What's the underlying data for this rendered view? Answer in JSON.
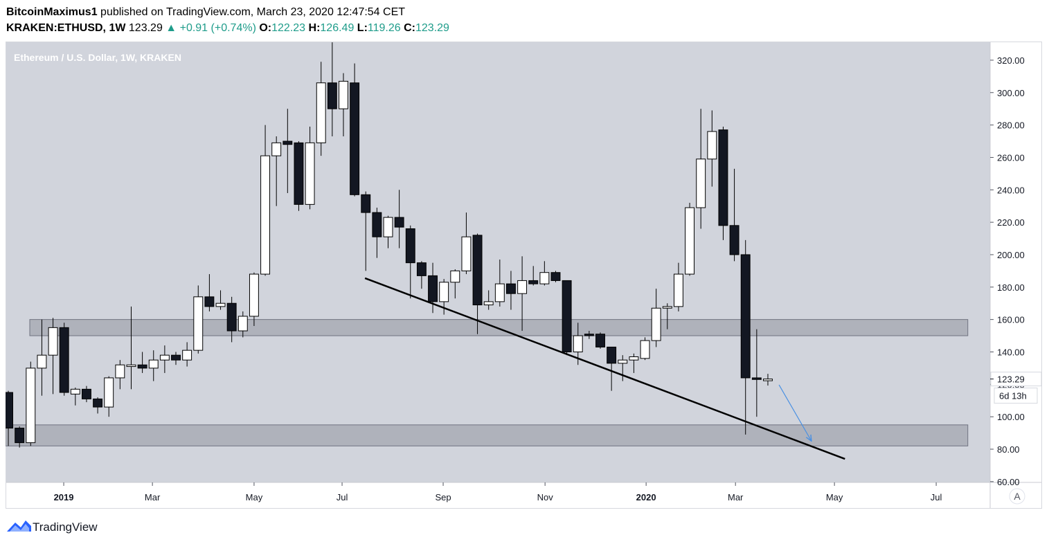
{
  "header": {
    "author": "BitcoinMaximus1",
    "published": "published on TradingView.com, March 23, 2020 12:47:54 CET",
    "symbol": "KRAKEN:ETHUSD, 1W",
    "arrow": "▲",
    "change": "+0.91 (+0.74%)",
    "ohlc_labels": [
      "O:",
      "H:",
      "L:",
      "C:"
    ]
  },
  "chart_data": {
    "type": "candlestick",
    "title": "Ethereum / U.S. Dollar, 1W, KRAKEN",
    "categories": [
      null,
      null,
      null,
      null,
      null,
      null,
      null,
      null,
      null,
      null,
      null,
      null,
      null,
      null,
      null,
      null,
      null,
      null,
      null,
      null,
      null,
      null,
      null,
      null,
      null,
      null,
      null,
      null,
      null,
      null,
      null,
      null,
      null,
      null,
      null,
      null,
      null,
      null,
      null,
      null,
      null,
      null,
      null,
      null,
      null,
      null,
      null,
      null,
      null,
      null,
      null,
      null,
      null,
      null,
      null,
      null,
      null,
      null,
      null,
      null,
      null,
      null,
      null,
      null,
      null,
      null,
      null,
      null,
      null
    ],
    "open": [
      115,
      93,
      84,
      130,
      138,
      155,
      114,
      117,
      111,
      106,
      124,
      131,
      132,
      130,
      135,
      138,
      135,
      141,
      174,
      168,
      170,
      153,
      162,
      188,
      261,
      270,
      269,
      231,
      269,
      306,
      290,
      306,
      237,
      226,
      211,
      223,
      216,
      195,
      187,
      171,
      183,
      190,
      212,
      169,
      171,
      182,
      176,
      184,
      182,
      189,
      184,
      140,
      151,
      151,
      143,
      133,
      135,
      136,
      147,
      167,
      168,
      188,
      229,
      259,
      277,
      218,
      200,
      124,
      122.23
    ],
    "high": [
      116,
      94,
      134,
      160,
      161,
      158,
      118,
      119,
      112,
      125,
      135,
      168,
      140,
      141,
      144,
      140,
      146,
      181,
      188,
      178,
      174,
      165,
      189,
      280,
      273,
      290,
      270,
      279,
      319,
      331,
      312,
      318,
      239,
      229,
      224,
      240,
      218,
      196,
      195,
      185,
      191,
      226,
      213,
      178,
      197,
      190,
      199,
      193,
      196,
      190,
      184,
      158,
      153,
      152,
      143,
      138,
      139,
      149,
      179,
      170,
      195,
      232,
      290,
      289,
      279,
      253,
      209,
      154,
      126.49
    ],
    "low": [
      82,
      81,
      82,
      113,
      114,
      113,
      107,
      109,
      102,
      100,
      117,
      117,
      127,
      122,
      127,
      132,
      131,
      139,
      165,
      166,
      146,
      149,
      156,
      187,
      230,
      238,
      227,
      228,
      261,
      273,
      273,
      236,
      190,
      198,
      204,
      204,
      173,
      179,
      164,
      163,
      173,
      188,
      151,
      166,
      168,
      166,
      153,
      181,
      181,
      183,
      138,
      132,
      148,
      142,
      116,
      122,
      127,
      135,
      143,
      154,
      165,
      187,
      216,
      242,
      209,
      196,
      89,
      100,
      119.26
    ],
    "close": [
      93,
      84,
      130,
      138,
      155,
      115,
      117,
      111,
      106,
      124,
      132,
      132,
      130,
      135,
      138,
      135,
      141,
      174,
      168,
      170,
      153,
      162,
      188,
      261,
      269,
      268,
      231,
      269,
      306,
      290,
      307,
      237,
      226,
      211,
      223,
      217,
      195,
      187,
      171,
      183,
      190,
      211,
      169,
      171,
      182,
      176,
      184,
      182,
      189,
      184,
      140,
      150,
      150,
      143,
      133,
      135,
      137,
      147,
      167,
      168,
      188,
      229,
      259,
      276,
      218,
      200,
      124,
      123,
      123.29
    ],
    "up_color": "#ffffff",
    "down_color": "#131722",
    "border_color": "#000000",
    "xlim": [
      -0.25,
      87.9
    ],
    "xticks": [
      {
        "value": 4.96,
        "label": "2019"
      },
      {
        "value": 12.9,
        "label": "Mar"
      },
      {
        "value": 22.0,
        "label": "May"
      },
      {
        "value": 29.88,
        "label": "Jul"
      },
      {
        "value": 38.93,
        "label": "Sep"
      },
      {
        "value": 48.05,
        "label": "Nov"
      },
      {
        "value": 57.1,
        "label": "2020"
      },
      {
        "value": 65.1,
        "label": "Mar"
      },
      {
        "value": 73.96,
        "label": "May"
      },
      {
        "value": 83.07,
        "label": "Jul"
      }
    ],
    "ylim": [
      59.5,
      331.5
    ],
    "yticks": [
      {
        "value": 60,
        "label": "60.00"
      },
      {
        "value": 80,
        "label": "80.00"
      },
      {
        "value": 100,
        "label": "100.00"
      },
      {
        "value": 120,
        "label": "120.00"
      },
      {
        "value": 140,
        "label": "140.00"
      },
      {
        "value": 160,
        "label": "160.00"
      },
      {
        "value": 180,
        "label": "180.00"
      },
      {
        "value": 200,
        "label": "200.00"
      },
      {
        "value": 220,
        "label": "220.00"
      },
      {
        "value": 240,
        "label": "240.00"
      },
      {
        "value": 260,
        "label": "260.00"
      },
      {
        "value": 280,
        "label": "280.00"
      },
      {
        "value": 300,
        "label": "300.00"
      },
      {
        "value": 320,
        "label": "320.00"
      }
    ],
    "grid": false,
    "countdown": "6d 13h",
    "scale_button": "A",
    "zones": [
      {
        "top": 160,
        "bottom": 150,
        "from": 1.92,
        "to": 85.9
      },
      {
        "top": 95,
        "bottom": 82,
        "from": -0.25,
        "to": 85.9
      }
    ],
    "trendline": {
      "x": [
        31.93,
        74.9
      ],
      "y": [
        185.5,
        74
      ],
      "color": "#000000"
    },
    "arrow": {
      "x": [
        69.0,
        71.9
      ],
      "y": [
        119.7,
        85
      ],
      "color": "#4a90e2"
    }
  },
  "footer": {
    "brand": "TradingView"
  }
}
